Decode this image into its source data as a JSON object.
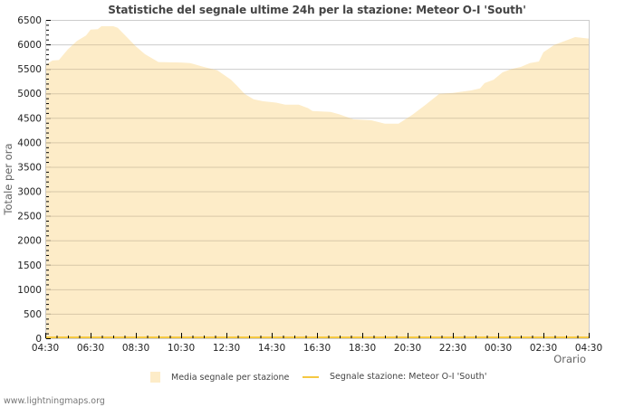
{
  "chart_data": {
    "type": "area",
    "title": "Statistiche del segnale ultime 24h per la stazione: Meteor O-I  'South'",
    "xlabel": "Orario",
    "ylabel": "Totale per ora",
    "ylim": [
      0,
      6500
    ],
    "yticks": [
      0,
      500,
      1000,
      1500,
      2000,
      2500,
      3000,
      3500,
      4000,
      4500,
      5000,
      5500,
      6000,
      6500
    ],
    "xticks": [
      "04:30",
      "06:30",
      "08:30",
      "10:30",
      "12:30",
      "14:30",
      "16:30",
      "18:30",
      "20:30",
      "22:30",
      "00:30",
      "02:30",
      "04:30"
    ],
    "grid": true,
    "legend_position": "bottom",
    "colors": {
      "area_fill": "#fdecc8",
      "station_line": "#f5c842",
      "grid": "#cccccc",
      "grid_inside": "#d8c8a8"
    },
    "series": [
      {
        "name": "Media segnale per stazione",
        "kind": "area",
        "x_hours_from_start": [
          0,
          0.32,
          0.6,
          1.0,
          1.4,
          1.8,
          2.0,
          2.32,
          2.48,
          3.0,
          3.2,
          3.6,
          4.0,
          4.4,
          5.0,
          6.0,
          6.4,
          7.0,
          7.6,
          8.2,
          8.48,
          8.8,
          9.2,
          9.6,
          10.2,
          10.6,
          11.2,
          11.6,
          11.8,
          12.6,
          13.0,
          13.6,
          14.4,
          15.0,
          15.6,
          16.2,
          16.8,
          17.4,
          18.0,
          18.8,
          19.2,
          19.4,
          19.8,
          20.2,
          20.6,
          21.0,
          21.4,
          21.8,
          22.0,
          22.48,
          23.0,
          23.4,
          24.0
        ],
        "x_labels_hint": "04:30 start, 1 hour per unit",
        "values": [
          5580,
          5670,
          5680,
          5900,
          6070,
          6180,
          6300,
          6310,
          6370,
          6370,
          6340,
          6150,
          5960,
          5800,
          5640,
          5630,
          5620,
          5540,
          5470,
          5280,
          5150,
          4990,
          4880,
          4840,
          4810,
          4770,
          4770,
          4700,
          4640,
          4620,
          4570,
          4470,
          4450,
          4380,
          4380,
          4560,
          4770,
          4990,
          5010,
          5060,
          5100,
          5210,
          5280,
          5430,
          5500,
          5540,
          5620,
          5650,
          5840,
          5990,
          6080,
          6150,
          6120
        ]
      },
      {
        "name": "Segnale stazione: Meteor O-I  'South'",
        "kind": "line",
        "values": [
          0
        ]
      }
    ]
  },
  "header": {
    "title": "Statistiche del segnale ultime 24h per la stazione: Meteor O-I  'South'"
  },
  "axes": {
    "y_title": "Totale per ora",
    "x_title": "Orario"
  },
  "legend": {
    "items": [
      {
        "label": "Media segnale per stazione"
      },
      {
        "label": "Segnale stazione: Meteor O-I  'South'"
      }
    ]
  },
  "footer": {
    "credit": "www.lightningmaps.org"
  }
}
